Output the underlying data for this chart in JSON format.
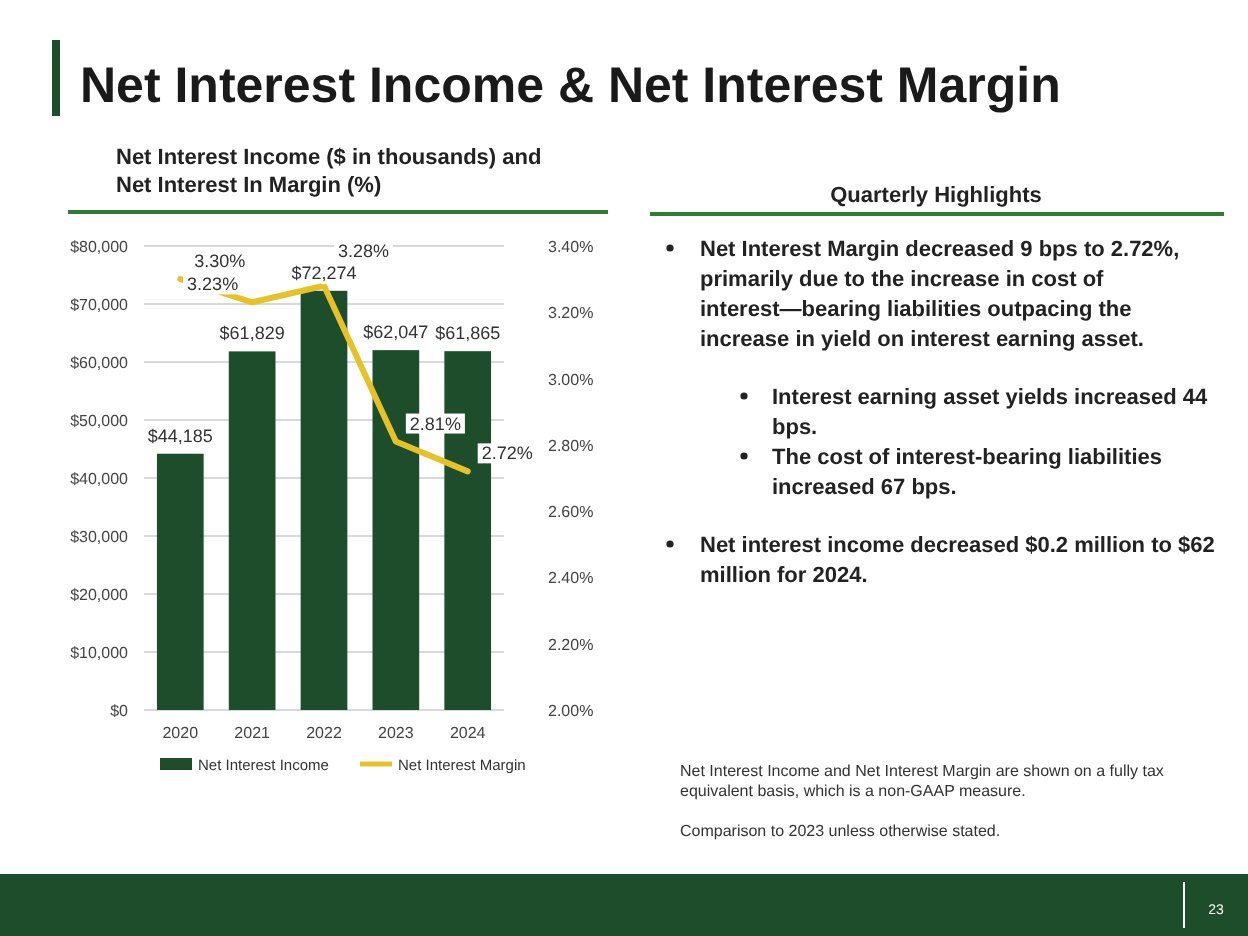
{
  "chart_data": {
    "type": "bar",
    "title": "Net Interest Income & Net Interest Margin",
    "subtitle": "Net Interest Income ($ in thousands) and Net Interest In Margin (%)",
    "categories": [
      "2020",
      "2021",
      "2022",
      "2023",
      "2024"
    ],
    "series": [
      {
        "name": "Net Interest Income",
        "color": "#1e4d2b",
        "values": [
          44185,
          61829,
          72274,
          62047,
          61865
        ],
        "value_labels": [
          "$44,185",
          "$61,829",
          "$72,274",
          "$62,047",
          "$61,865"
        ]
      },
      {
        "name": "Net Interest Margin",
        "type": "line",
        "axis": "y2",
        "color": "#e6c229",
        "values": [
          3.3,
          3.23,
          3.28,
          2.81,
          2.72
        ],
        "value_labels": [
          "3.30%",
          "3.23%",
          "3.28%",
          "2.81%",
          "2.72%"
        ]
      }
    ],
    "ylim": [
      0,
      80000
    ],
    "yticks": [
      {
        "value": 0,
        "label": "$0"
      },
      {
        "value": 10000,
        "label": "$10,000"
      },
      {
        "value": 20000,
        "label": "$20,000"
      },
      {
        "value": 30000,
        "label": "$30,000"
      },
      {
        "value": 40000,
        "label": "$40,000"
      },
      {
        "value": 50000,
        "label": "$50,000"
      },
      {
        "value": 60000,
        "label": "$60,000"
      },
      {
        "value": 70000,
        "label": "$70,000"
      },
      {
        "value": 80000,
        "label": "$80,000"
      }
    ],
    "y2lim": [
      2.0,
      3.4
    ],
    "y2ticks": [
      {
        "value": 2.0,
        "label": "2.00%"
      },
      {
        "value": 2.2,
        "label": "2.20%"
      },
      {
        "value": 2.4,
        "label": "2.40%"
      },
      {
        "value": 2.6,
        "label": "2.60%"
      },
      {
        "value": 2.8,
        "label": "2.80%"
      },
      {
        "value": 3.0,
        "label": "3.00%"
      },
      {
        "value": 3.2,
        "label": "3.20%"
      },
      {
        "value": 3.4,
        "label": "3.40%"
      }
    ],
    "grid": "y",
    "legend": "bottom",
    "marker": "none",
    "line_style": "solid",
    "annotations": [
      "Quarterly Highlights",
      "Net Interest Margin decreased 9 bps to 2.72%, primarily due to the increase in cost of interest—bearing liabilities outpacing the increase in yield on interest earning asset.",
      "Interest earning asset yields increased 44 bps.",
      "The cost of interest-bearing liabilities increased 67 bps.",
      "Net interest income decreased $0.2 million to $62 million for 2024.",
      "Net Interest Income and Net Interest Margin are shown on a fully tax equivalent basis, which is a non-GAAP measure.",
      "Comparison to 2023 unless otherwise stated.",
      "23"
    ]
  }
}
